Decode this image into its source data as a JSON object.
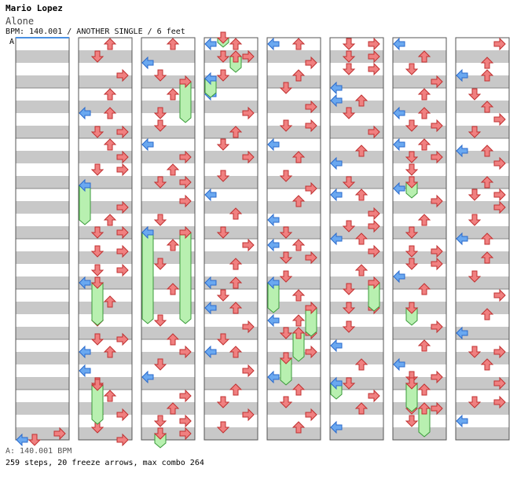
{
  "header": {
    "artist": "Mario Lopez",
    "title": "Alone",
    "bpm_line": "BPM: 140.001 / ANOTHER SINGLE / 6 feet",
    "section_marker": "A"
  },
  "footer": {
    "bpm_label": "A: 140.001 BPM",
    "stats": "259 steps, 20 freeze arrows, max combo 264"
  },
  "colors": {
    "left": "#6aa8f0",
    "down": "#f08080",
    "up": "#f08080",
    "right": "#f08080",
    "freeze": "#b8f0b0",
    "stripe": "#c8c8c8"
  },
  "chart_data": {
    "type": "step-chart",
    "lanes": [
      "left",
      "down",
      "up",
      "right"
    ],
    "measures_per_column": 8,
    "columns": 8,
    "total_steps": 259,
    "freeze_arrows": 20,
    "max_combo": 264,
    "bpm": 140.001,
    "difficulty": "ANOTHER",
    "style": "SINGLE",
    "feet": 6
  }
}
